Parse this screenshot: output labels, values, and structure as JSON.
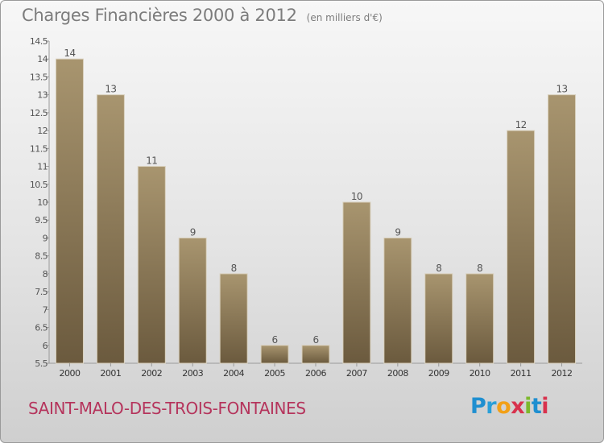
{
  "header": {
    "title": "Charges Financières 2000 à 2012",
    "unit": "(en milliers d'€)"
  },
  "footer": {
    "commune": "SAINT-MALO-DES-TROIS-FONTAINES",
    "logo_letters": [
      "P",
      "r",
      "o",
      "x",
      "i",
      "t",
      "i"
    ]
  },
  "colors": {
    "bar": "#8c7a5c",
    "bar_light": "#a8956f",
    "bar_dark": "#6b5a3e",
    "commune": "#b5345c",
    "text": "#7c7c7c"
  },
  "chart_data": {
    "type": "bar",
    "title": "Charges Financières 2000 à 2012",
    "subtitle": "(en milliers d'€)",
    "categories": [
      "2000",
      "2001",
      "2002",
      "2003",
      "2004",
      "2005",
      "2006",
      "2007",
      "2008",
      "2009",
      "2010",
      "2011",
      "2012"
    ],
    "values": [
      14,
      13,
      11,
      9,
      8,
      6,
      6,
      10,
      9,
      8,
      8,
      12,
      13
    ],
    "data_labels": [
      "14",
      "13",
      "11",
      "9",
      "8",
      "6",
      "6",
      "10",
      "9",
      "8",
      "8",
      "12",
      "13"
    ],
    "ylim": [
      5.5,
      14.5
    ],
    "yticks": [
      "5.5",
      "6",
      "6.5",
      "7",
      "7.5",
      "8",
      "8.5",
      "9",
      "9.5",
      "10",
      "10.5",
      "11",
      "11.5",
      "12",
      "12.5",
      "13",
      "13.5",
      "14",
      "14.5"
    ],
    "grid": false,
    "legend": "none"
  }
}
